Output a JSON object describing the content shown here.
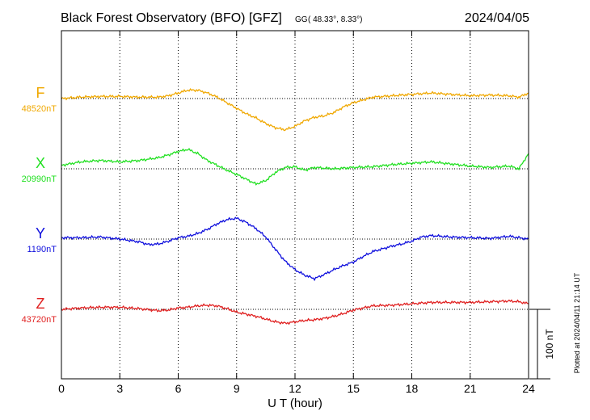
{
  "chart_data": {
    "type": "line",
    "title": "Black Forest Observatory (BFO)  [GFZ]",
    "coords_prefix": "GG",
    "coords": "( 48.33°,   8.33°)",
    "date": "2024/04/05",
    "xlabel": "U T (hour)",
    "xlim": [
      0,
      24
    ],
    "x_ticks": [
      "0",
      "3",
      "6",
      "9",
      "12",
      "15",
      "18",
      "21",
      "24"
    ],
    "scale_bar": {
      "label": "100 nT",
      "value": 100
    },
    "side_note": "Plotted at 2024/04/11 21:14 UT",
    "grid": true,
    "series": [
      {
        "name": "F",
        "baseline_label": "48520nT",
        "baseline_nT": 48520,
        "color": "#f0a800",
        "x": [
          0,
          1,
          2,
          3,
          4,
          5,
          5.5,
          6,
          6.5,
          7,
          7.5,
          8,
          8.5,
          9,
          9.5,
          10,
          10.5,
          11,
          11.5,
          12,
          12.5,
          13,
          13.5,
          14,
          14.5,
          15,
          16,
          17,
          18,
          19,
          20,
          21,
          22,
          23,
          23.5,
          24
        ],
        "values": [
          0,
          2,
          3,
          3,
          2,
          2,
          4,
          8,
          12,
          12,
          8,
          2,
          -6,
          -14,
          -22,
          -28,
          -36,
          -42,
          -45,
          -40,
          -32,
          -27,
          -25,
          -20,
          -12,
          -6,
          2,
          4,
          6,
          8,
          6,
          4,
          5,
          4,
          2,
          8
        ]
      },
      {
        "name": "X",
        "baseline_label": "20990nT",
        "baseline_nT": 20990,
        "color": "#22e022",
        "x": [
          0,
          1,
          2,
          3,
          4,
          5,
          5.5,
          6,
          6.5,
          7,
          7.5,
          8,
          8.5,
          9,
          9.5,
          10,
          10.5,
          11,
          11.5,
          12,
          12.5,
          13,
          14,
          15,
          16,
          17,
          18,
          19,
          20,
          21,
          22,
          23,
          23.5,
          24
        ],
        "values": [
          5,
          10,
          12,
          10,
          12,
          16,
          20,
          25,
          28,
          22,
          12,
          5,
          -2,
          -8,
          -15,
          -22,
          -17,
          -5,
          2,
          3,
          -2,
          2,
          0,
          2,
          3,
          6,
          8,
          10,
          7,
          4,
          2,
          4,
          0,
          22
        ]
      },
      {
        "name": "Y",
        "baseline_label": "1190nT",
        "baseline_nT": 1190,
        "color": "#1010dd",
        "x": [
          0,
          1,
          2,
          3,
          4,
          4.5,
          5,
          5.5,
          6,
          6.5,
          7,
          7.5,
          8,
          8.5,
          9,
          9.5,
          10,
          10.5,
          11,
          11.5,
          12,
          12.5,
          13,
          13.5,
          14,
          14.5,
          15,
          15.5,
          16,
          17,
          17.5,
          18,
          18.5,
          19,
          20,
          21,
          22,
          23,
          23.5,
          24
        ],
        "values": [
          2,
          2,
          3,
          0,
          -4,
          -8,
          -7,
          -3,
          2,
          4,
          8,
          14,
          22,
          28,
          30,
          24,
          15,
          3,
          -15,
          -32,
          -44,
          -52,
          -57,
          -51,
          -44,
          -38,
          -33,
          -25,
          -18,
          -10,
          -7,
          -3,
          3,
          5,
          3,
          2,
          1,
          4,
          2,
          0
        ]
      },
      {
        "name": "Z",
        "baseline_label": "43720nT",
        "baseline_nT": 43720,
        "color": "#e02020",
        "x": [
          0,
          1,
          2,
          3,
          4,
          5,
          5.5,
          6,
          6.5,
          7,
          7.5,
          8,
          8.5,
          9,
          9.5,
          10,
          10.5,
          11,
          11.5,
          12,
          12.5,
          13,
          13.5,
          14,
          14.5,
          15,
          16,
          17,
          18,
          19,
          20,
          21,
          22,
          23,
          23.5,
          24
        ],
        "values": [
          0,
          2,
          3,
          3,
          1,
          -2,
          -1,
          2,
          3,
          5,
          6,
          5,
          1,
          -4,
          -7,
          -10,
          -14,
          -18,
          -20,
          -18,
          -16,
          -15,
          -13,
          -10,
          -6,
          -1,
          5,
          6,
          8,
          10,
          10,
          10,
          11,
          12,
          11,
          8
        ]
      }
    ]
  }
}
